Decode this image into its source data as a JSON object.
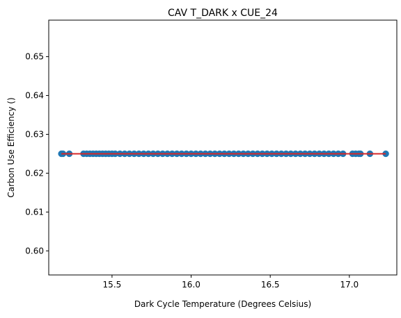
{
  "chart_data": {
    "type": "scatter",
    "title": "CAV T_DARK x CUE_24",
    "xlabel": "Dark Cycle Temperature (Degrees Celsius)",
    "ylabel": "Carbon Use Efficiency ()",
    "xlim": [
      15.1,
      17.3
    ],
    "ylim": [
      0.5938,
      0.6594
    ],
    "x_ticks": [
      15.5,
      16.0,
      16.5,
      17.0
    ],
    "x_tick_labels": [
      "15.5",
      "16.0",
      "16.5",
      "17.0"
    ],
    "y_ticks": [
      0.6,
      0.61,
      0.62,
      0.63,
      0.64,
      0.65
    ],
    "y_tick_labels": [
      "0.60",
      "0.61",
      "0.62",
      "0.63",
      "0.64",
      "0.65"
    ],
    "grid": false,
    "series": [
      {
        "color": "#1f77b4",
        "points": {
          "y": 0.625,
          "x": [
            15.18,
            15.19,
            15.23,
            15.32,
            15.34,
            15.36,
            15.38,
            15.4,
            15.42,
            15.44,
            15.46,
            15.48,
            15.5,
            15.52,
            15.55,
            15.58,
            15.61,
            15.64,
            15.67,
            15.7,
            15.73,
            15.76,
            15.79,
            15.82,
            15.85,
            15.88,
            15.91,
            15.94,
            15.97,
            16.0,
            16.03,
            16.06,
            16.09,
            16.12,
            16.15,
            16.18,
            16.21,
            16.24,
            16.27,
            16.3,
            16.33,
            16.36,
            16.39,
            16.42,
            16.45,
            16.48,
            16.51,
            16.54,
            16.57,
            16.6,
            16.63,
            16.66,
            16.69,
            16.72,
            16.75,
            16.78,
            16.81,
            16.84,
            16.87,
            16.9,
            16.93,
            16.96,
            17.02,
            17.04,
            17.06,
            17.07,
            17.13,
            17.23
          ]
        }
      }
    ],
    "fit_line": {
      "color": "#d62728",
      "x": [
        15.18,
        17.23
      ],
      "y": [
        0.625,
        0.625
      ]
    }
  }
}
